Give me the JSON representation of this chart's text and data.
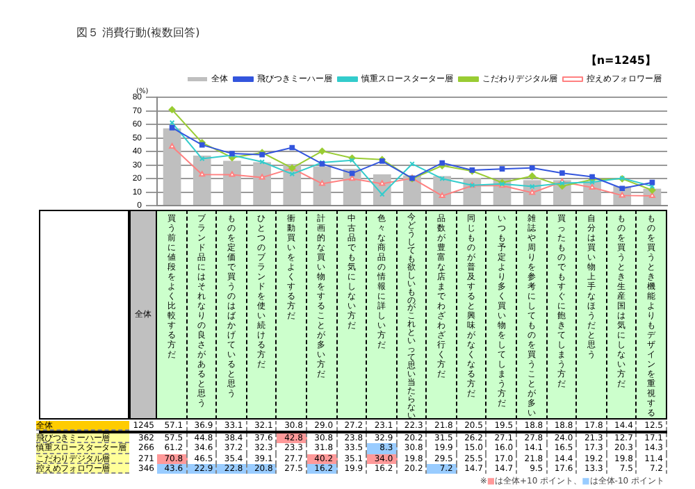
{
  "chart_data": {
    "type": "bar",
    "title": "図５ 消費行動(複数回答)",
    "subtitle": "【n=1245】",
    "ylabel": "(%)",
    "categories": [
      "買う前に値段をよく比較する方だ",
      "ブランド品にはそれなりの良さがあると思う",
      "ものを定価で買うのはばかげていると思う",
      "ひとつのブランドを使い続ける方だ",
      "衝動買いをよくする方だ",
      "計画的な買い物をすることが多い方だ",
      "中古品でも気にしない方だ",
      "色々な商品の情報に詳しい方だ",
      "今どうしても欲しいものがこれといって思い当たらない",
      "品数が豊富な店までわざわざ行く方だ",
      "同じものが普及すると興味がなくなる方だ",
      "いつも予定より多く買い物をしてしまう方だ",
      "雑誌や周りを参考にしてものを買うことが多い",
      "買ったものでもすぐに飽きてしまう方だ",
      "自分は買い物上手なほうだと思う",
      "ものを買うとき生産国は気にしない方だ",
      "ものを買うとき機能よりもデザインを重視する"
    ],
    "series": [
      {
        "name": "全体",
        "color": "#bfbfbf",
        "values": [
          57.1,
          36.9,
          33.1,
          32.1,
          30.8,
          29.0,
          27.2,
          23.1,
          22.3,
          21.8,
          20.5,
          19.5,
          18.8,
          18.8,
          17.8,
          14.4,
          12.5
        ],
        "value_labels": [
          "57.1",
          "36.9",
          "33.1",
          "32.1",
          "30.8",
          "29.0",
          "27.2",
          "23.1",
          "22.3",
          "21.8",
          "20.5",
          "19.5",
          "18.8",
          "18.8",
          "17.8",
          "14.4",
          "12.5"
        ]
      },
      {
        "name": "飛びつきミーハー層",
        "type": "line",
        "color": "#3355dd",
        "marker": "square",
        "values": [
          57.5,
          44.8,
          38.4,
          37.6,
          42.8,
          30.8,
          23.8,
          32.9,
          20.2,
          31.5,
          26.2,
          27.1,
          27.8,
          24.0,
          21.3,
          12.7,
          17.1
        ],
        "value_labels": [
          "57.5",
          "44.8",
          "38.4",
          "37.6",
          "42.8",
          "30.8",
          "23.8",
          "32.9",
          "20.2",
          "31.5",
          "26.2",
          "27.1",
          "27.8",
          "24.0",
          "21.3",
          "12.7",
          "17.1"
        ]
      },
      {
        "name": "慎重スロースターター層",
        "type": "line",
        "color": "#33cccc",
        "marker": "cross",
        "values": [
          61.2,
          34.6,
          37.2,
          32.3,
          23.3,
          31.8,
          33.5,
          8.3,
          30.8,
          19.9,
          15.0,
          16.0,
          14.1,
          16.5,
          17.3,
          20.3,
          14.3
        ],
        "value_labels": [
          "61.2",
          "34.6",
          "37.2",
          "32.3",
          "23.3",
          "31.8",
          "33.5",
          "8.3",
          "30.8",
          "19.9",
          "15.0",
          "16.0",
          "14.1",
          "16.5",
          "17.3",
          "20.3",
          "14.3"
        ]
      },
      {
        "name": "こだわりデジタル層",
        "type": "line",
        "color": "#99cc33",
        "marker": "diamond",
        "values": [
          70.8,
          46.5,
          35.4,
          39.1,
          27.7,
          40.2,
          35.1,
          34.0,
          19.8,
          29.5,
          25.5,
          17.0,
          21.8,
          14.4,
          19.2,
          19.8,
          11.4
        ],
        "value_labels": [
          "70.8",
          "46.5",
          "35.4",
          "39.1",
          "27.7",
          "40.2",
          "35.1",
          "34.0",
          "19.8",
          "29.5",
          "25.5",
          "17.0",
          "21.8",
          "14.4",
          "19.2",
          "19.8",
          "11.4"
        ]
      },
      {
        "name": "控えめフォロワー層",
        "type": "line",
        "color": "#ff8080",
        "marker": "triangle",
        "values": [
          43.6,
          22.9,
          22.8,
          20.8,
          27.5,
          16.2,
          19.9,
          16.2,
          20.2,
          7.2,
          14.7,
          14.7,
          9.5,
          17.6,
          13.3,
          7.5,
          7.2
        ],
        "value_labels": [
          "43.6",
          "22.9",
          "22.8",
          "20.8",
          "27.5",
          "16.2",
          "19.9",
          "16.2",
          "20.2",
          "7.2",
          "14.7",
          "14.7",
          "9.5",
          "17.6",
          "13.3",
          "7.5",
          "7.2"
        ]
      }
    ],
    "ylim": [
      0,
      80
    ],
    "yticks": [
      0,
      10,
      20,
      30,
      40,
      50,
      60,
      70,
      80
    ],
    "grid": "y",
    "legend": "top right",
    "tick_labels": "y",
    "annotations": [
      "全体",
      "1245",
      "362",
      "266",
      "271",
      "346",
      "※■は全体+10 ポイント、■は全体-10 ポイント"
    ]
  }
}
